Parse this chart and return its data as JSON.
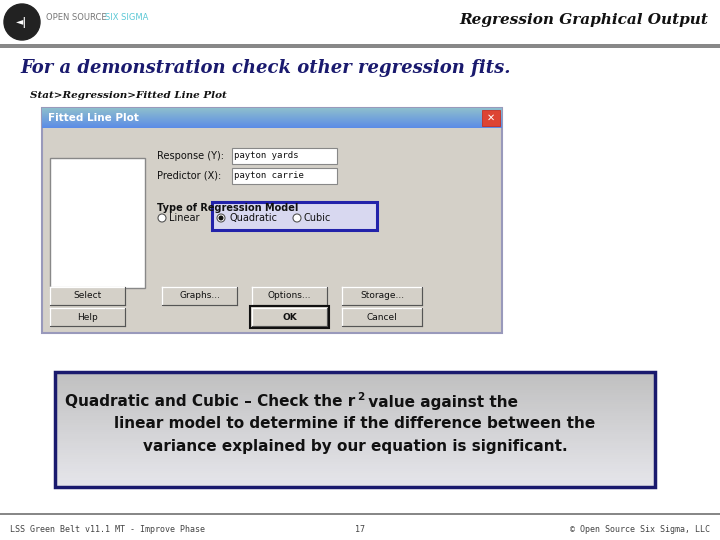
{
  "title": "Regression Graphical Output",
  "header_text_color": "#777777",
  "header_six_sigma_color": "#5bc8d5",
  "bg_color": "#ffffff",
  "main_heading": "For a demonstration check other regression fits.",
  "sub_heading": "Stat>Regression>Fitted Line Plot",
  "dialog_title": "Fitted Line Plot",
  "dialog_title_bg_top": "#6aabf7",
  "dialog_title_bg_bot": "#3a6ec0",
  "dialog_bg": "#d4d0c8",
  "dialog_border": "#6688bb",
  "response_label": "Response (Y):",
  "response_value": "payton yards",
  "predictor_label": "Predictor (X):",
  "predictor_value": "payton carrie",
  "regression_label": "Type of Regression Model",
  "radio_linear": "Linear",
  "radio_quadratic": "Quadratic",
  "radio_cubic": "Cubic",
  "btn_select": "Select",
  "btn_graphs": "Graphs...",
  "btn_options": "Options...",
  "btn_storage": "Storage...",
  "btn_help": "Help",
  "btn_ok": "OK",
  "btn_cancel": "Cancel",
  "callout_line1a": "Quadratic and Cubic – Check the r",
  "callout_line1b": "2",
  "callout_line1c": " value against the",
  "callout_line2": "linear model to determine if the difference between the",
  "callout_line3": "variance explained by our equation is significant.",
  "callout_border": "#1a1a6e",
  "callout_bg_dark": "#b8b8c8",
  "callout_bg_light": "#e0e0ec",
  "footer_left": "LSS Green Belt v11.1 MT - Improve Phase",
  "footer_center": "17",
  "footer_right": "© Open Source Six Sigma, LLC",
  "footer_color": "#444444",
  "separator_color": "#888888",
  "heading_color": "#1a1a6e"
}
